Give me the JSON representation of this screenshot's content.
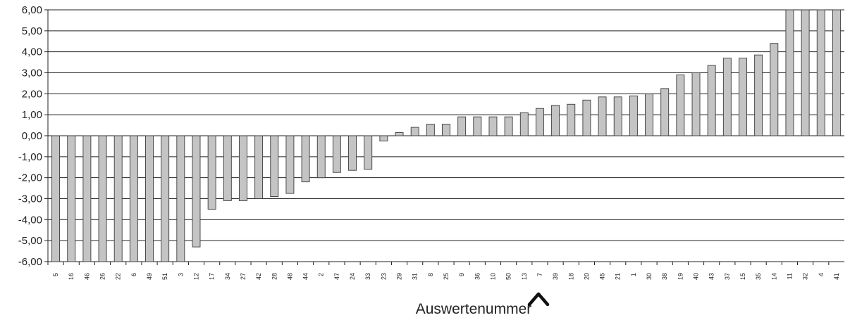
{
  "chart_data": {
    "type": "bar",
    "title": "",
    "xlabel": "Auswertenummer",
    "ylabel": "",
    "ylim": [
      -6,
      6
    ],
    "yticks": [
      "6,00",
      "5,00",
      "4,00",
      "3,00",
      "2,00",
      "1,00",
      "0,00",
      "-1,00",
      "-2,00",
      "-3,00",
      "-4,00",
      "-5,00",
      "-6,00"
    ],
    "grid": true,
    "legend": "none",
    "colors": {
      "bar_fill": "#c4c4c4",
      "bar_stroke": "#3a3a3a",
      "grid": "#222222"
    },
    "marker_icon": "caret-up-icon",
    "categories": [
      "5",
      "16",
      "46",
      "26",
      "22",
      "6",
      "49",
      "51",
      "3",
      "12",
      "17",
      "34",
      "27",
      "42",
      "28",
      "48",
      "44",
      "2",
      "47",
      "24",
      "33",
      "23",
      "29",
      "31",
      "8",
      "25",
      "9",
      "36",
      "10",
      "50",
      "13",
      "7",
      "39",
      "18",
      "20",
      "45",
      "21",
      "1",
      "30",
      "38",
      "19",
      "40",
      "43",
      "37",
      "15",
      "35",
      "14",
      "11",
      "32",
      "4",
      "41"
    ],
    "values": [
      -6,
      -6,
      -6,
      -6,
      -6,
      -6,
      -6,
      -6,
      -6,
      -5.3,
      -3.5,
      -3.1,
      -3.1,
      -3.0,
      -2.9,
      -2.75,
      -2.2,
      -2.0,
      -1.75,
      -1.65,
      -1.6,
      -0.25,
      0.15,
      0.4,
      0.55,
      0.55,
      0.9,
      0.9,
      0.9,
      0.9,
      1.1,
      1.3,
      1.45,
      1.5,
      1.7,
      1.85,
      1.85,
      1.9,
      2.0,
      2.25,
      2.9,
      3.0,
      3.35,
      3.7,
      3.7,
      3.85,
      4.4,
      6.0,
      6.0,
      6.0,
      6.0
    ]
  }
}
